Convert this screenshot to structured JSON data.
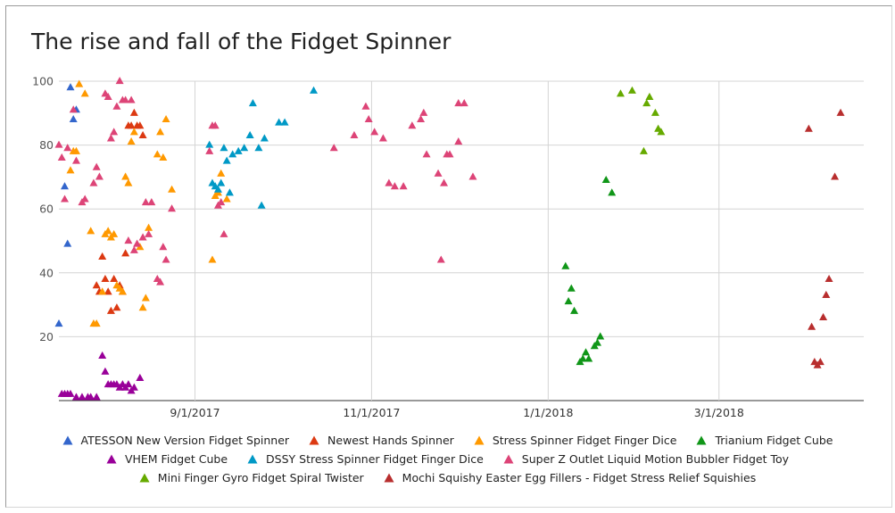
{
  "chart_data": {
    "type": "scatter",
    "title": "The rise and fall of the Fidget Spinner",
    "xlabel": "",
    "ylabel": "",
    "xlim": [
      "2017-07-16",
      "2018-04-20"
    ],
    "ylim": [
      0,
      100
    ],
    "yticks": [
      20,
      40,
      60,
      80,
      100
    ],
    "xticks": [
      "2017-09-01",
      "2017-11-01",
      "2018-01-01",
      "2018-03-01"
    ],
    "xtick_labels": [
      "9/1/2017",
      "11/1/2017",
      "1/1/2018",
      "3/1/2018"
    ],
    "grid": true,
    "legend_position": "bottom",
    "marker": "triangle",
    "series": [
      {
        "name": "ATESSON New Version Fidget Spinner",
        "color": "#3366cc",
        "points": [
          [
            "2017-07-16",
            24
          ],
          [
            "2017-07-18",
            67
          ],
          [
            "2017-07-19",
            49
          ],
          [
            "2017-07-20",
            98
          ],
          [
            "2017-07-21",
            88
          ],
          [
            "2017-07-22",
            91
          ]
        ]
      },
      {
        "name": "Newest Hands Spinner",
        "color": "#dc3912",
        "points": [
          [
            "2017-07-29",
            36
          ],
          [
            "2017-07-30",
            34
          ],
          [
            "2017-07-31",
            45
          ],
          [
            "2017-08-01",
            38
          ],
          [
            "2017-08-02",
            34
          ],
          [
            "2017-08-03",
            28
          ],
          [
            "2017-08-04",
            38
          ],
          [
            "2017-08-05",
            29
          ],
          [
            "2017-08-06",
            36
          ],
          [
            "2017-08-07",
            34
          ],
          [
            "2017-08-08",
            46
          ],
          [
            "2017-08-09",
            86
          ],
          [
            "2017-08-10",
            86
          ],
          [
            "2017-08-11",
            90
          ],
          [
            "2017-08-12",
            86
          ],
          [
            "2017-08-13",
            86
          ],
          [
            "2017-08-14",
            83
          ]
        ]
      },
      {
        "name": "Stress Spinner Fidget Finger Dice",
        "color": "#ff9900",
        "points": [
          [
            "2017-07-20",
            72
          ],
          [
            "2017-07-21",
            78
          ],
          [
            "2017-07-22",
            78
          ],
          [
            "2017-07-23",
            99
          ],
          [
            "2017-07-25",
            96
          ],
          [
            "2017-07-27",
            53
          ],
          [
            "2017-07-28",
            24
          ],
          [
            "2017-07-29",
            24
          ],
          [
            "2017-07-31",
            34
          ],
          [
            "2017-08-01",
            52
          ],
          [
            "2017-08-02",
            53
          ],
          [
            "2017-08-03",
            51
          ],
          [
            "2017-08-04",
            52
          ],
          [
            "2017-08-05",
            36
          ],
          [
            "2017-08-06",
            35
          ],
          [
            "2017-08-07",
            34
          ],
          [
            "2017-08-08",
            70
          ],
          [
            "2017-08-09",
            68
          ],
          [
            "2017-08-10",
            81
          ],
          [
            "2017-08-11",
            84
          ],
          [
            "2017-08-13",
            48
          ],
          [
            "2017-08-14",
            29
          ],
          [
            "2017-08-15",
            32
          ],
          [
            "2017-08-16",
            54
          ],
          [
            "2017-08-19",
            77
          ],
          [
            "2017-08-20",
            84
          ],
          [
            "2017-08-21",
            76
          ],
          [
            "2017-08-22",
            88
          ],
          [
            "2017-08-24",
            66
          ],
          [
            "2017-09-07",
            44
          ],
          [
            "2017-09-08",
            64
          ],
          [
            "2017-09-09",
            65
          ],
          [
            "2017-09-10",
            71
          ],
          [
            "2017-09-12",
            63
          ]
        ]
      },
      {
        "name": "Trianium Fidget Cube",
        "color": "#109618",
        "points": [
          [
            "2018-01-07",
            42
          ],
          [
            "2018-01-08",
            31
          ],
          [
            "2018-01-09",
            35
          ],
          [
            "2018-01-10",
            28
          ],
          [
            "2018-01-12",
            12
          ],
          [
            "2018-01-13",
            13
          ],
          [
            "2018-01-14",
            15
          ],
          [
            "2018-01-15",
            13
          ],
          [
            "2018-01-17",
            17
          ],
          [
            "2018-01-18",
            18
          ],
          [
            "2018-01-19",
            20
          ],
          [
            "2018-01-21",
            69
          ],
          [
            "2018-01-23",
            65
          ]
        ]
      },
      {
        "name": "VHEM Fidget Cube",
        "color": "#990099",
        "points": [
          [
            "2017-07-17",
            2
          ],
          [
            "2017-07-18",
            2
          ],
          [
            "2017-07-19",
            2
          ],
          [
            "2017-07-20",
            2
          ],
          [
            "2017-07-22",
            1
          ],
          [
            "2017-07-24",
            1
          ],
          [
            "2017-07-26",
            1
          ],
          [
            "2017-07-27",
            1
          ],
          [
            "2017-07-29",
            1
          ],
          [
            "2017-07-31",
            14
          ],
          [
            "2017-08-01",
            9
          ],
          [
            "2017-08-02",
            5
          ],
          [
            "2017-08-03",
            5
          ],
          [
            "2017-08-04",
            5
          ],
          [
            "2017-08-05",
            5
          ],
          [
            "2017-08-06",
            4
          ],
          [
            "2017-08-07",
            5
          ],
          [
            "2017-08-08",
            4
          ],
          [
            "2017-08-09",
            5
          ],
          [
            "2017-08-10",
            3
          ],
          [
            "2017-08-11",
            4
          ],
          [
            "2017-08-13",
            7
          ]
        ]
      },
      {
        "name": "DSSY Stress Spinner Fidget Finger Dice",
        "color": "#0099c6",
        "points": [
          [
            "2017-09-06",
            80
          ],
          [
            "2017-09-07",
            68
          ],
          [
            "2017-09-08",
            67
          ],
          [
            "2017-09-09",
            66
          ],
          [
            "2017-09-10",
            68
          ],
          [
            "2017-09-11",
            79
          ],
          [
            "2017-09-12",
            75
          ],
          [
            "2017-09-13",
            65
          ],
          [
            "2017-09-14",
            77
          ],
          [
            "2017-09-16",
            78
          ],
          [
            "2017-09-18",
            79
          ],
          [
            "2017-09-20",
            83
          ],
          [
            "2017-09-21",
            93
          ],
          [
            "2017-09-23",
            79
          ],
          [
            "2017-09-24",
            61
          ],
          [
            "2017-09-25",
            82
          ],
          [
            "2017-09-30",
            87
          ],
          [
            "2017-10-02",
            87
          ],
          [
            "2017-10-12",
            97
          ]
        ]
      },
      {
        "name": "Super Z Outlet Liquid Motion Bubbler Fidget Toy",
        "color": "#dd4477",
        "points": [
          [
            "2017-07-16",
            80
          ],
          [
            "2017-07-17",
            76
          ],
          [
            "2017-07-18",
            63
          ],
          [
            "2017-07-19",
            79
          ],
          [
            "2017-07-21",
            91
          ],
          [
            "2017-07-22",
            75
          ],
          [
            "2017-07-24",
            62
          ],
          [
            "2017-07-25",
            63
          ],
          [
            "2017-07-28",
            68
          ],
          [
            "2017-07-29",
            73
          ],
          [
            "2017-07-30",
            70
          ],
          [
            "2017-08-01",
            96
          ],
          [
            "2017-08-02",
            95
          ],
          [
            "2017-08-03",
            82
          ],
          [
            "2017-08-04",
            84
          ],
          [
            "2017-08-05",
            92
          ],
          [
            "2017-08-06",
            100
          ],
          [
            "2017-08-07",
            94
          ],
          [
            "2017-08-08",
            94
          ],
          [
            "2017-08-09",
            50
          ],
          [
            "2017-08-10",
            94
          ],
          [
            "2017-08-11",
            47
          ],
          [
            "2017-08-12",
            49
          ],
          [
            "2017-08-14",
            51
          ],
          [
            "2017-08-15",
            62
          ],
          [
            "2017-08-16",
            52
          ],
          [
            "2017-08-17",
            62
          ],
          [
            "2017-08-19",
            38
          ],
          [
            "2017-08-20",
            37
          ],
          [
            "2017-08-21",
            48
          ],
          [
            "2017-08-22",
            44
          ],
          [
            "2017-08-24",
            60
          ],
          [
            "2017-09-06",
            78
          ],
          [
            "2017-09-07",
            86
          ],
          [
            "2017-09-08",
            86
          ],
          [
            "2017-09-09",
            61
          ],
          [
            "2017-09-10",
            62
          ],
          [
            "2017-09-11",
            52
          ],
          [
            "2017-10-19",
            79
          ],
          [
            "2017-10-26",
            83
          ],
          [
            "2017-10-30",
            92
          ],
          [
            "2017-10-31",
            88
          ],
          [
            "2017-11-02",
            84
          ],
          [
            "2017-11-05",
            82
          ],
          [
            "2017-11-07",
            68
          ],
          [
            "2017-11-09",
            67
          ],
          [
            "2017-11-12",
            67
          ],
          [
            "2017-11-15",
            86
          ],
          [
            "2017-11-18",
            88
          ],
          [
            "2017-11-19",
            90
          ],
          [
            "2017-11-20",
            77
          ],
          [
            "2017-11-24",
            71
          ],
          [
            "2017-11-25",
            44
          ],
          [
            "2017-11-26",
            68
          ],
          [
            "2017-11-27",
            77
          ],
          [
            "2017-11-28",
            77
          ],
          [
            "2017-12-01",
            81
          ],
          [
            "2017-12-01",
            93
          ],
          [
            "2017-12-03",
            93
          ],
          [
            "2017-12-06",
            70
          ]
        ]
      },
      {
        "name": "Mini Finger Gyro Fidget Spiral Twister",
        "color": "#66aa00",
        "points": [
          [
            "2018-01-26",
            96
          ],
          [
            "2018-01-30",
            97
          ],
          [
            "2018-02-03",
            78
          ],
          [
            "2018-02-04",
            93
          ],
          [
            "2018-02-05",
            95
          ],
          [
            "2018-02-07",
            90
          ],
          [
            "2018-02-08",
            85
          ],
          [
            "2018-02-09",
            84
          ]
        ]
      },
      {
        "name": "Mochi Squishy Easter Egg Fillers - Fidget Stress Relief Squishies",
        "color": "#b82e2e",
        "points": [
          [
            "2018-04-01",
            85
          ],
          [
            "2018-04-02",
            23
          ],
          [
            "2018-04-03",
            12
          ],
          [
            "2018-04-04",
            11
          ],
          [
            "2018-04-05",
            12
          ],
          [
            "2018-04-06",
            26
          ],
          [
            "2018-04-07",
            33
          ],
          [
            "2018-04-08",
            38
          ],
          [
            "2018-04-10",
            70
          ],
          [
            "2018-04-12",
            90
          ]
        ]
      }
    ]
  }
}
